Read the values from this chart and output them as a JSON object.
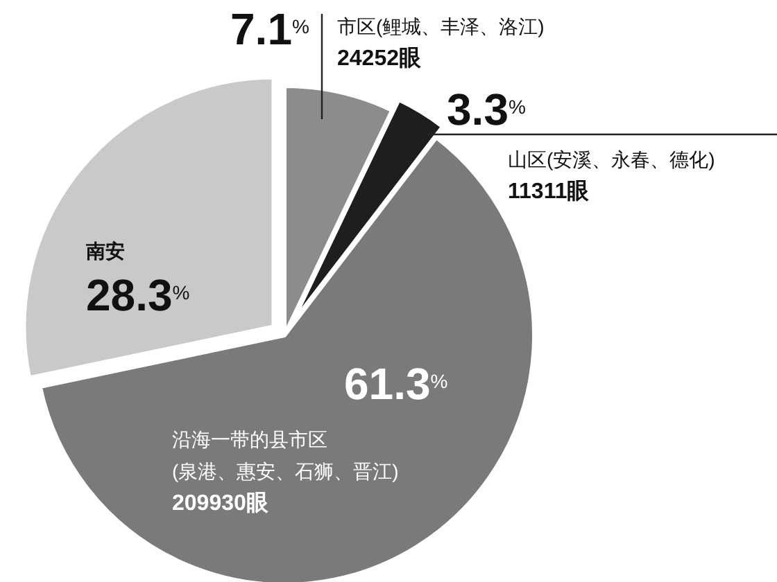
{
  "chart_data": {
    "type": "pie",
    "categories": [
      "市区(鲤城、丰泽、洛江)\n24252眼",
      "山区(安溪、永春、德化)\n11311眼",
      "沿海一带的县市区\n(泉港、惠安、石狮、晋江)\n209930眼",
      "南安"
    ],
    "values": [
      7.1,
      3.3,
      61.3,
      28.3
    ],
    "value_labels": [
      "7.1$^{%}$",
      "3.3$^{%}$",
      "61.3$^{%}$",
      "28.3$^{%}$"
    ],
    "colors": [
      "#8c8c8c",
      "#1e1e1e",
      "#7a7a7a",
      "#c9c9c9"
    ]
  }
}
